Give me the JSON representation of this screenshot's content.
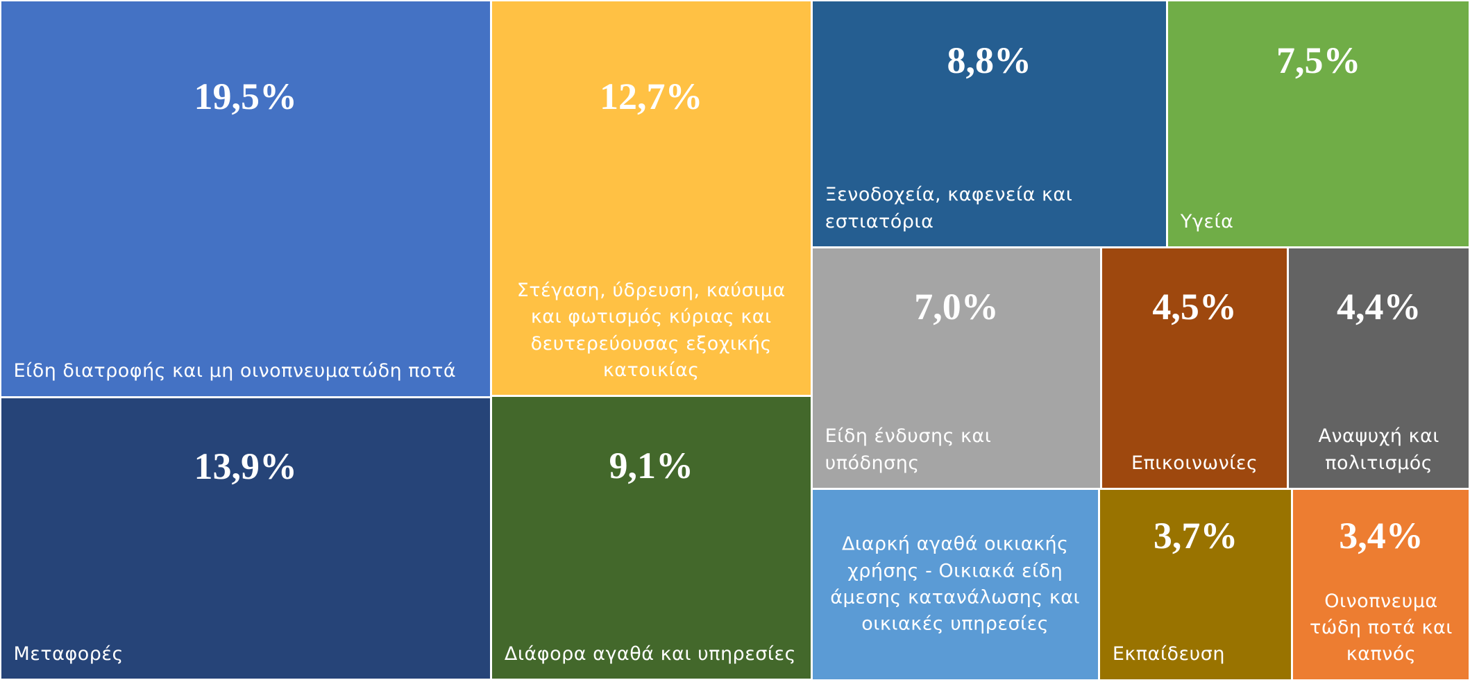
{
  "chart_data": {
    "type": "treemap",
    "categories": [
      "Είδη διατροφής και μη οινοπνευματώδη ποτά",
      "Μεταφορές",
      "Στέγαση, ύδρευση, καύσιμα και φωτισμός κύριας και δευτερεύουσας εξοχικής κατοικίας",
      "Διάφορα αγαθά και υπηρεσίες",
      "Ξενοδοχεία, καφενεία και εστιατόρια",
      "Υγεία",
      "Είδη ένδυσης και υπόδησης",
      "Επικοινωνίες",
      "Αναψυχή και πολιτισμός",
      "Διαρκή αγαθά οικιακής χρήσης - Οικιακά είδη άμεσης κατανάλωσης και οικιακές υπηρεσίες",
      "Εκπαίδευση",
      "Οινοπνευμα τώδη ποτά και καπνός"
    ],
    "values": [
      19.5,
      13.9,
      12.7,
      9.1,
      8.8,
      7.5,
      7.0,
      4.5,
      4.4,
      5.5,
      3.7,
      3.4
    ],
    "value_labels": [
      "19,5%",
      "13,9%",
      "12,7%",
      "9,1%",
      "8,8%",
      "7,5%",
      "7,0%",
      "4,5%",
      "4,4%",
      null,
      "3,7%",
      "3,4%"
    ],
    "colors": [
      "#4472c4",
      "#264478",
      "#ffc144",
      "#43682b",
      "#255e91",
      "#70ad47",
      "#a5a5a5",
      "#9e480e",
      "#636363",
      "#5b9bd5",
      "#997300",
      "#ed7d31"
    ]
  }
}
